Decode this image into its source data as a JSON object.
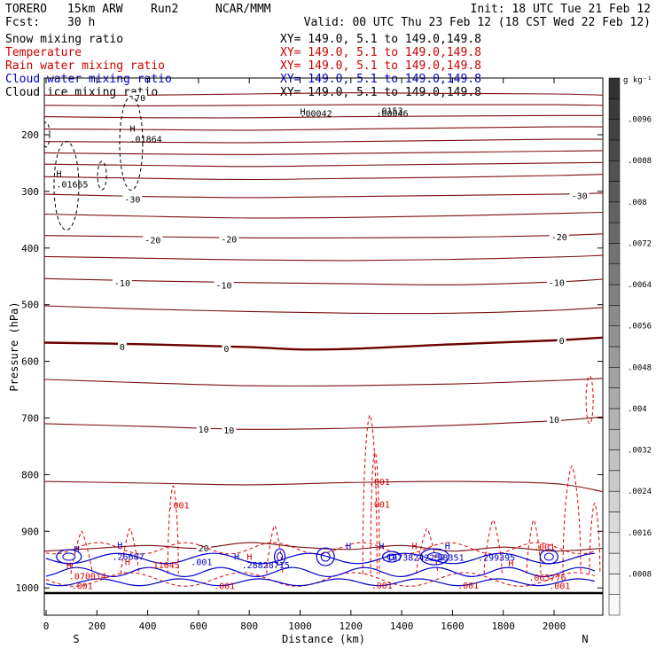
{
  "header": {
    "model": "TORERO",
    "resolution": "15km ARW",
    "run": "Run2",
    "org": "NCAR/MMM",
    "init": "Init: 18 UTC Tue 21 Feb 12",
    "fcst_label": "Fcst:",
    "fcst_value": "30 h",
    "valid": "Valid: 00 UTC Thu 23 Feb 12 (18 CST Wed 22 Feb 12)"
  },
  "fields": [
    {
      "name": "Snow mixing ratio",
      "xy": "XY= 149.0,  5.1 to 149.0,149.8",
      "color": "#000000"
    },
    {
      "name": "Temperature",
      "xy": "XY= 149.0,  5.1 to 149.0,149.8",
      "color": "#cc0000"
    },
    {
      "name": "Rain water mixing ratio",
      "xy": "XY= 149.0,  5.1 to 149.0,149.8",
      "color": "#cc0000"
    },
    {
      "name": "Cloud water mixing ratio",
      "xy": "XY= 149.0,  5.1 to 149.0,149.8",
      "color": "#0000cc"
    },
    {
      "name": "Cloud ice mixing ratio",
      "xy": "XY= 149.0,  5.1 to 149.0,149.8",
      "color": "#000000"
    }
  ],
  "chart_data": {
    "type": "contour-cross-section",
    "xlabel": "Distance (km)",
    "ylabel": "Pressure (hPa)",
    "xlim": [
      0,
      2180
    ],
    "ylim": [
      1050,
      100
    ],
    "x_ticks": [
      0,
      200,
      400,
      600,
      800,
      1000,
      1200,
      1400,
      1600,
      1800,
      2000
    ],
    "y_ticks": [
      200,
      300,
      400,
      500,
      600,
      700,
      800,
      900,
      1000
    ],
    "left_end_label": "S",
    "right_end_label": "N",
    "temperature_isotherms": [
      {
        "value": -70,
        "label": "-70",
        "x": [
          0,
          400,
          800,
          1200,
          1600,
          2000,
          2180
        ],
        "p": [
          130,
          130,
          128,
          126,
          127,
          128,
          130
        ]
      },
      {
        "value": -65,
        "label": "",
        "x": [
          0,
          400,
          800,
          1200,
          1600,
          2000,
          2180
        ],
        "p": [
          148,
          149,
          148,
          147,
          147,
          147,
          148
        ]
      },
      {
        "value": -60,
        "label": "",
        "x": [
          0,
          400,
          800,
          1200,
          1600,
          2000,
          2180
        ],
        "p": [
          168,
          170,
          170,
          168,
          167,
          166,
          166
        ]
      },
      {
        "value": -55,
        "label": "",
        "x": [
          0,
          400,
          800,
          1200,
          1600,
          2000,
          2180
        ],
        "p": [
          190,
          191,
          192,
          190,
          188,
          186,
          186
        ]
      },
      {
        "value": -50,
        "label": "",
        "x": [
          0,
          400,
          800,
          1200,
          1600,
          2000,
          2180
        ],
        "p": [
          212,
          213,
          214,
          212,
          210,
          208,
          208
        ]
      },
      {
        "value": -45,
        "label": "",
        "x": [
          0,
          400,
          800,
          1200,
          1600,
          2000,
          2180
        ],
        "p": [
          232,
          234,
          235,
          233,
          231,
          229,
          228
        ]
      },
      {
        "value": -40,
        "label": "",
        "x": [
          0,
          400,
          800,
          1200,
          1600,
          2000,
          2180
        ],
        "p": [
          252,
          254,
          256,
          254,
          252,
          250,
          249
        ]
      },
      {
        "value": -35,
        "label": "",
        "x": [
          0,
          400,
          800,
          1200,
          1600,
          2000,
          2180
        ],
        "p": [
          274,
          277,
          279,
          277,
          275,
          272,
          270
        ]
      },
      {
        "value": -30,
        "label": "-30",
        "x": [
          0,
          400,
          800,
          1200,
          1600,
          2000,
          2180
        ],
        "p": [
          305,
          309,
          311,
          309,
          307,
          305,
          303
        ]
      },
      {
        "value": -25,
        "label": "",
        "x": [
          0,
          400,
          800,
          1200,
          1600,
          2000,
          2180
        ],
        "p": [
          340,
          344,
          347,
          346,
          343,
          339,
          337
        ]
      },
      {
        "value": -20,
        "label": "-20",
        "x": [
          0,
          400,
          800,
          1200,
          1600,
          2000,
          2180
        ],
        "p": [
          378,
          380,
          382,
          382,
          381,
          378,
          375
        ]
      },
      {
        "value": -15,
        "label": "",
        "x": [
          0,
          400,
          800,
          1200,
          1600,
          2000,
          2180
        ],
        "p": [
          415,
          418,
          421,
          422,
          420,
          416,
          413
        ]
      },
      {
        "value": -10,
        "label": "-10",
        "x": [
          0,
          400,
          800,
          1200,
          1600,
          2000,
          2180
        ],
        "p": [
          454,
          458,
          461,
          463,
          465,
          460,
          455
        ]
      },
      {
        "value": -5,
        "label": "",
        "x": [
          0,
          400,
          800,
          1200,
          1600,
          2000,
          2180
        ],
        "p": [
          502,
          508,
          512,
          515,
          515,
          510,
          505
        ]
      },
      {
        "value": 0,
        "label": "0",
        "x": [
          0,
          400,
          800,
          1000,
          1200,
          1600,
          2000,
          2180
        ],
        "p": [
          567,
          570,
          575,
          579,
          578,
          570,
          563,
          558
        ]
      },
      {
        "value": 5,
        "label": "",
        "x": [
          0,
          400,
          800,
          1200,
          1600,
          2000,
          2180
        ],
        "p": [
          632,
          638,
          643,
          643,
          640,
          634,
          630
        ]
      },
      {
        "value": 10,
        "label": "10",
        "x": [
          0,
          400,
          800,
          1200,
          1600,
          2000,
          2180
        ],
        "p": [
          710,
          715,
          720,
          718,
          713,
          705,
          698
        ]
      },
      {
        "value": 15,
        "label": "",
        "x": [
          0,
          400,
          800,
          1200,
          1600,
          2000,
          2180
        ],
        "p": [
          812,
          815,
          818,
          814,
          812,
          816,
          830
        ]
      },
      {
        "value": 20,
        "label": "20",
        "x": [
          0,
          200,
          400,
          600,
          800,
          1000,
          1200,
          1400,
          1600,
          1800,
          2000,
          2180
        ],
        "p": [
          935,
          930,
          925,
          930,
          920,
          928,
          932,
          925,
          935,
          928,
          935,
          930
        ]
      }
    ],
    "contour_labels": [
      {
        "text": "-70",
        "x": 360,
        "p": 135
      },
      {
        "text": "-30",
        "x": 340,
        "p": 314
      },
      {
        "text": "-30",
        "x": 2100,
        "p": 308
      },
      {
        "text": "-20",
        "x": 420,
        "p": 386
      },
      {
        "text": "-20",
        "x": 720,
        "p": 385
      },
      {
        "text": "-20",
        "x": 2020,
        "p": 381
      },
      {
        "text": "-10",
        "x": 300,
        "p": 462
      },
      {
        "text": "-10",
        "x": 700,
        "p": 466
      },
      {
        "text": "-10",
        "x": 2010,
        "p": 461
      },
      {
        "text": "0",
        "x": 300,
        "p": 575
      },
      {
        "text": "0",
        "x": 710,
        "p": 578
      },
      {
        "text": "0",
        "x": 2030,
        "p": 564
      },
      {
        "text": "10",
        "x": 620,
        "p": 720
      },
      {
        "text": "10",
        "x": 720,
        "p": 722
      },
      {
        "text": "10",
        "x": 2000,
        "p": 703
      },
      {
        "text": "20",
        "x": 620,
        "p": 930
      }
    ],
    "snow_maxima": [
      {
        "label": "H",
        "value": ".01864",
        "x": 330,
        "p": 210
      },
      {
        "label": "H",
        "value": ".01665",
        "x": 40,
        "p": 290
      }
    ],
    "ice_annotations": [
      {
        "text": ".00042",
        "x": 1000,
        "p": 168
      },
      {
        "text": ".00046",
        "x": 1300,
        "p": 168
      },
      {
        "text": "H",
        "x": 1000,
        "p": 165
      },
      {
        "text": ".0153",
        "x": 1300,
        "p": 163
      }
    ],
    "rain_labels": [
      {
        "text": ".001",
        "x": 480,
        "p": 860
      },
      {
        "text": ".001",
        "x": 1270,
        "p": 818
      },
      {
        "text": ".001",
        "x": 1270,
        "p": 858
      },
      {
        "text": ".001",
        "x": 1980,
        "p": 1002
      },
      {
        "text": ".001",
        "x": 100,
        "p": 1002
      },
      {
        "text": ".001",
        "x": 660,
        "p": 1002
      },
      {
        "text": ".001",
        "x": 1280,
        "p": 1001
      },
      {
        "text": ".001",
        "x": 1620,
        "p": 1001
      },
      {
        "text": ".001",
        "x": 1920,
        "p": 933
      },
      {
        "text": ".065776",
        "x": 1900,
        "p": 987
      },
      {
        "text": ".070014",
        "x": 90,
        "p": 985
      },
      {
        "text": ".11645",
        "x": 400,
        "p": 965
      }
    ],
    "cloud_water_labels": [
      {
        "text": ".26687",
        "x": 260,
        "p": 950
      },
      {
        "text": ".001",
        "x": 570,
        "p": 960
      },
      {
        "text": ".28828715",
        "x": 770,
        "p": 965
      },
      {
        "text": ".16738242257",
        "x": 1320,
        "p": 952
      },
      {
        "text": ".58351",
        "x": 1520,
        "p": 952
      },
      {
        "text": ".299395",
        "x": 1700,
        "p": 952
      }
    ],
    "maxima_markers": [
      {
        "text": "H",
        "x": 110,
        "p": 937,
        "color": "#0000cc"
      },
      {
        "text": "H",
        "x": 280,
        "p": 930,
        "color": "#0000cc"
      },
      {
        "text": "H",
        "x": 740,
        "p": 950,
        "color": "#0000cc"
      },
      {
        "text": "H",
        "x": 1180,
        "p": 932,
        "color": "#0000cc"
      },
      {
        "text": "H",
        "x": 1310,
        "p": 932,
        "color": "#0000cc"
      },
      {
        "text": "H",
        "x": 1570,
        "p": 932,
        "color": "#0000cc"
      },
      {
        "text": "H",
        "x": 80,
        "p": 966,
        "color": "#cc0000"
      },
      {
        "text": "H",
        "x": 310,
        "p": 960,
        "color": "#cc0000"
      },
      {
        "text": "H",
        "x": 790,
        "p": 950,
        "color": "#cc0000"
      },
      {
        "text": "H",
        "x": 1440,
        "p": 932,
        "color": "#cc0000"
      },
      {
        "text": "H",
        "x": 1820,
        "p": 962,
        "color": "#cc0000"
      }
    ],
    "colorbar": {
      "unit": "g kg⁻¹",
      "min": 0,
      "max": 0.0104,
      "step": 0.0004,
      "ticks": [
        ".0008",
        ".0016",
        ".0024",
        ".0032",
        ".004",
        ".0048",
        ".0056",
        ".0064",
        ".0072",
        ".008",
        ".0088",
        ".0096"
      ],
      "tick_values": [
        0.0008,
        0.0016,
        0.0024,
        0.0032,
        0.004,
        0.0048,
        0.0056,
        0.0064,
        0.0072,
        0.008,
        0.0088,
        0.0096
      ]
    },
    "colors": {
      "isotherm": "#7a1010",
      "isotherm_zero": "#6b0000",
      "rain": "#dd0000",
      "cloud_water": "#0000cc",
      "snow": "#000000",
      "ground": "#000000"
    }
  }
}
